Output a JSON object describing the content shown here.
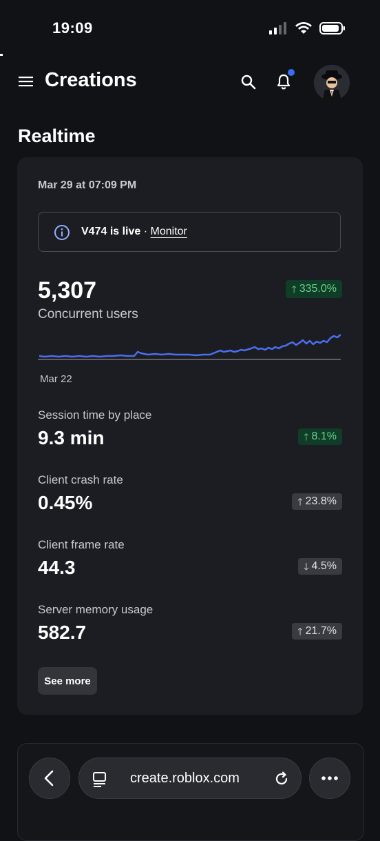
{
  "status_bar": {
    "time": "19:09"
  },
  "header": {
    "title": "Creations"
  },
  "section": {
    "title": "Realtime"
  },
  "card": {
    "date": "Mar 29 at 07:09 PM",
    "live_banner": {
      "version_text": "V474 is live",
      "separator": "·",
      "link": "Monitor"
    },
    "concurrent": {
      "value": "5,307",
      "label": "Concurrent users",
      "change": "335.0%",
      "direction": "up",
      "chart_start_label": "Mar 22"
    },
    "metrics": [
      {
        "label": "Session time by place",
        "value": "9.3 min",
        "change": "8.1%",
        "direction": "up",
        "style": "green"
      },
      {
        "label": "Client crash rate",
        "value": "0.45%",
        "change": "23.8%",
        "direction": "up",
        "style": "gray"
      },
      {
        "label": "Client frame rate",
        "value": "44.3",
        "change": "4.5%",
        "direction": "down",
        "style": "gray"
      },
      {
        "label": "Server memory usage",
        "value": "582.7",
        "change": "21.7%",
        "direction": "up",
        "style": "gray"
      }
    ],
    "see_more": "See more"
  },
  "browser": {
    "url": "create.roblox.com"
  },
  "colors": {
    "accent_blue": "#3b6cf4",
    "positive_green": "#6fd08c",
    "background": "#111216",
    "card": "#1c1d22"
  }
}
